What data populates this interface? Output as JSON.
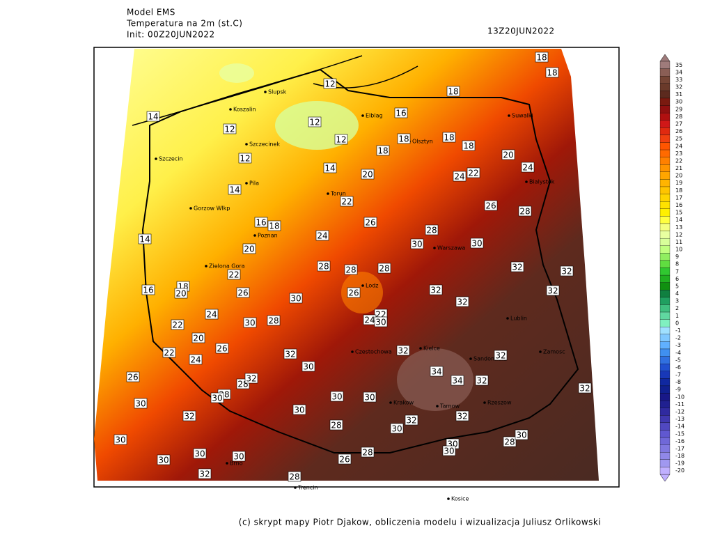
{
  "header": {
    "model": "Model EMS",
    "variable": "Temperatura na 2m (st.C)",
    "init": "Init: 00Z20JUN2022",
    "valid": "13Z20JUN2022"
  },
  "footer": "(c) skrypt mapy Piotr Djakow, obliczenia modelu i wizualizacja Juliusz Orlikowski",
  "colorbar": {
    "levels": [
      35,
      34,
      33,
      32,
      31,
      30,
      29,
      28,
      27,
      26,
      25,
      24,
      23,
      22,
      21,
      20,
      19,
      18,
      17,
      16,
      15,
      14,
      13,
      12,
      11,
      10,
      9,
      8,
      7,
      6,
      5,
      4,
      3,
      2,
      1,
      0,
      -1,
      -2,
      -3,
      -4,
      -5,
      -6,
      -7,
      -8,
      -9,
      -10,
      -11,
      -12,
      -13,
      -14,
      -15,
      -16,
      -17,
      -18,
      -19,
      -20
    ],
    "colors": [
      "#9e7b7b",
      "#8a5e55",
      "#754535",
      "#6a3a2a",
      "#5c2a1e",
      "#7a1a10",
      "#901010",
      "#b01010",
      "#d01818",
      "#e02a10",
      "#f04010",
      "#ff5500",
      "#ff6a00",
      "#ff8000",
      "#ff9400",
      "#ffa500",
      "#ffb400",
      "#ffc400",
      "#ffd400",
      "#ffe200",
      "#fff000",
      "#ffff40",
      "#f4ff80",
      "#e8ffa0",
      "#d8ff9a",
      "#c0ff80",
      "#90ee60",
      "#60dd40",
      "#30c830",
      "#20b020",
      "#109010",
      "#108040",
      "#20a060",
      "#40c080",
      "#60d8a0",
      "#80f0c0",
      "#a0e0ff",
      "#80c8ff",
      "#60b0ff",
      "#4090f0",
      "#3070e0",
      "#2050d0",
      "#1838b8",
      "#1028a0",
      "#102090",
      "#181888",
      "#202090",
      "#302aa0",
      "#4038b0",
      "#5048c0",
      "#6058d0",
      "#7068d8",
      "#8078e0",
      "#9088e8",
      "#a098f0",
      "#c0b0ff"
    ]
  },
  "cities": [
    "Slupsk",
    "Koszalin",
    "Elblag",
    "Olsztyn",
    "Suwalki",
    "Szczecinek",
    "Szczecin",
    "Pila",
    "Gorzow Wlkp",
    "Torun",
    "Bialystok",
    "Poznan",
    "Warszawa",
    "Zielona Gora",
    "Lodz",
    "Lublin",
    "Czestochowa",
    "Kielce",
    "Sandomierz",
    "Zamosc",
    "Krakow",
    "Tarnow",
    "Rzeszow",
    "Brno",
    "Trencin",
    "Kosice"
  ],
  "contour_labels": [
    12,
    12,
    12,
    12,
    12,
    14,
    14,
    14,
    14,
    16,
    16,
    16,
    18,
    18,
    18,
    18,
    18,
    18,
    18,
    18,
    18,
    20,
    20,
    20,
    20,
    20,
    22,
    22,
    22,
    22,
    22,
    22,
    24,
    24,
    24,
    24,
    24,
    24,
    26,
    26,
    26,
    26,
    26,
    26,
    26,
    28,
    28,
    28,
    28,
    28,
    28,
    28,
    28,
    28,
    28,
    28,
    28,
    30,
    30,
    30,
    30,
    30,
    30,
    30,
    30,
    30,
    30,
    30,
    30,
    30,
    30,
    30,
    30,
    30,
    30,
    30,
    32,
    32,
    32,
    32,
    32,
    32,
    32,
    32,
    32,
    32,
    32,
    32,
    32,
    32,
    32,
    34,
    34
  ]
}
